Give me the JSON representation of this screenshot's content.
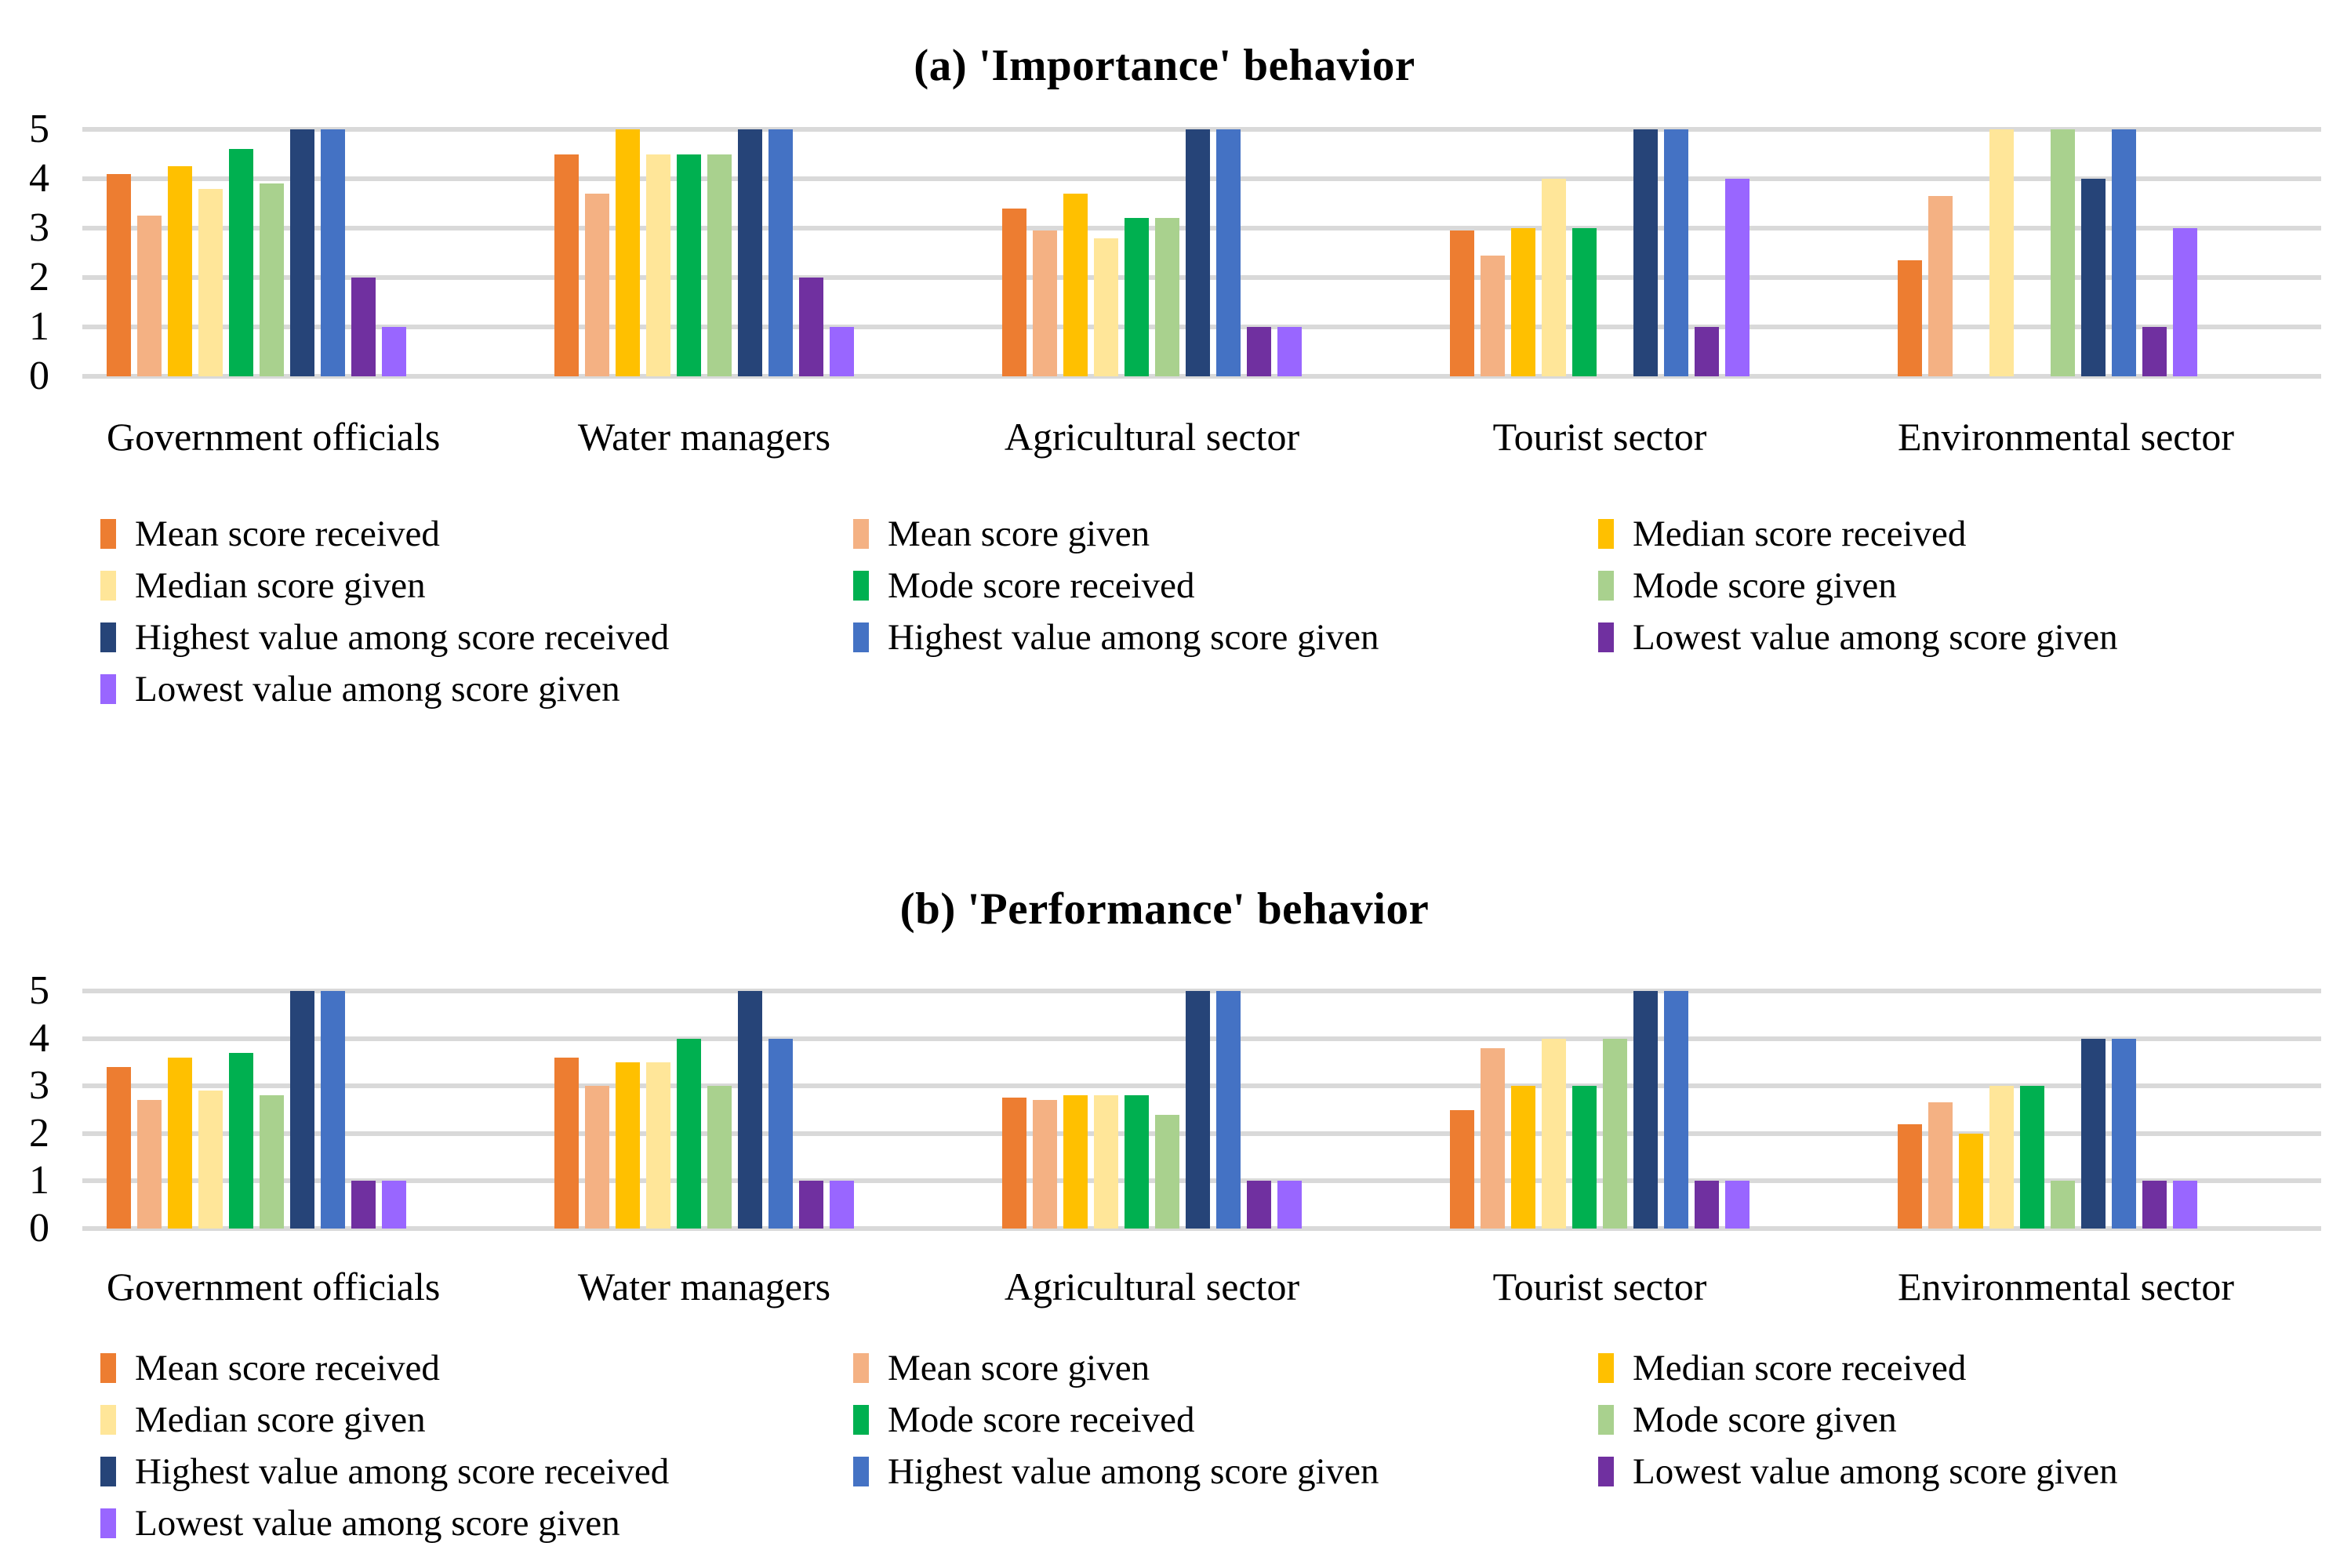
{
  "page": {
    "background": "#FFFFFF",
    "grid_color": "#D9D9D9"
  },
  "chart_data": [
    {
      "type": "bar",
      "title_marker": "(a)",
      "title_text": "'Importance' behavior",
      "categories": [
        "Government officials",
        "Water managers",
        "Agricultural sector",
        "Tourist sector",
        "Environmental sector"
      ],
      "ylim": [
        0,
        5
      ],
      "yticks": [
        5,
        4,
        3,
        2,
        1,
        0
      ],
      "grid": true,
      "legend_position": "bottom",
      "series": [
        {
          "name": "Mean score received",
          "color": "#ED7D31",
          "values": [
            4.1,
            4.5,
            3.4,
            2.95,
            2.35
          ]
        },
        {
          "name": "Mean score given",
          "color": "#F4B183",
          "values": [
            3.25,
            3.7,
            2.95,
            2.45,
            3.65
          ]
        },
        {
          "name": "Median score received",
          "color": "#FFC000",
          "values": [
            4.25,
            5,
            3.7,
            3,
            0
          ]
        },
        {
          "name": "Median score given",
          "color": "#FFE699",
          "values": [
            3.8,
            4.5,
            2.8,
            4,
            5
          ]
        },
        {
          "name": "Mode score received",
          "color": "#00B050",
          "values": [
            4.6,
            4.5,
            3.2,
            3,
            0
          ]
        },
        {
          "name": "Mode score given",
          "color": "#A9D18E",
          "values": [
            3.9,
            4.5,
            3.2,
            0,
            5
          ]
        },
        {
          "name": "Highest value among score received",
          "color": "#264478",
          "values": [
            5,
            5,
            5,
            5,
            4
          ]
        },
        {
          "name": "Highest value among score given",
          "color": "#4472C4",
          "values": [
            5,
            5,
            5,
            5,
            5
          ]
        },
        {
          "name": "Lowest value among score given",
          "color": "#7030A0",
          "values": [
            2,
            2,
            1,
            1,
            1
          ]
        },
        {
          "name": "Lowest value among score given",
          "color": "#9966FF",
          "values": [
            1,
            1,
            1,
            4,
            3
          ]
        }
      ]
    },
    {
      "type": "bar",
      "title_marker": "(b)",
      "title_text": "'Performance' behavior",
      "categories": [
        "Government officials",
        "Water managers",
        "Agricultural sector",
        "Tourist sector",
        "Environmental sector"
      ],
      "ylim": [
        0,
        5
      ],
      "yticks": [
        5,
        4,
        3,
        2,
        1,
        0
      ],
      "grid": true,
      "legend_position": "bottom",
      "series": [
        {
          "name": "Mean score received",
          "color": "#ED7D31",
          "values": [
            3.4,
            3.6,
            2.75,
            2.5,
            2.2
          ]
        },
        {
          "name": "Mean score given",
          "color": "#F4B183",
          "values": [
            2.7,
            3,
            2.7,
            3.8,
            2.65
          ]
        },
        {
          "name": "Median score received",
          "color": "#FFC000",
          "values": [
            3.6,
            3.5,
            2.8,
            3,
            2
          ]
        },
        {
          "name": "Median score given",
          "color": "#FFE699",
          "values": [
            2.9,
            3.5,
            2.8,
            4,
            3
          ]
        },
        {
          "name": "Mode score received",
          "color": "#00B050",
          "values": [
            3.7,
            4,
            2.8,
            3,
            3
          ]
        },
        {
          "name": "Mode score given",
          "color": "#A9D18E",
          "values": [
            2.8,
            3,
            2.4,
            4,
            1
          ]
        },
        {
          "name": "Highest value among score received",
          "color": "#264478",
          "values": [
            5,
            5,
            5,
            5,
            4
          ]
        },
        {
          "name": "Highest value among score given",
          "color": "#4472C4",
          "values": [
            5,
            4,
            5,
            5,
            4
          ]
        },
        {
          "name": "Lowest value among score given",
          "color": "#7030A0",
          "values": [
            1,
            1,
            1,
            1,
            1
          ]
        },
        {
          "name": "Lowest value among score given",
          "color": "#9966FF",
          "values": [
            1,
            1,
            1,
            1,
            1
          ]
        }
      ]
    }
  ]
}
